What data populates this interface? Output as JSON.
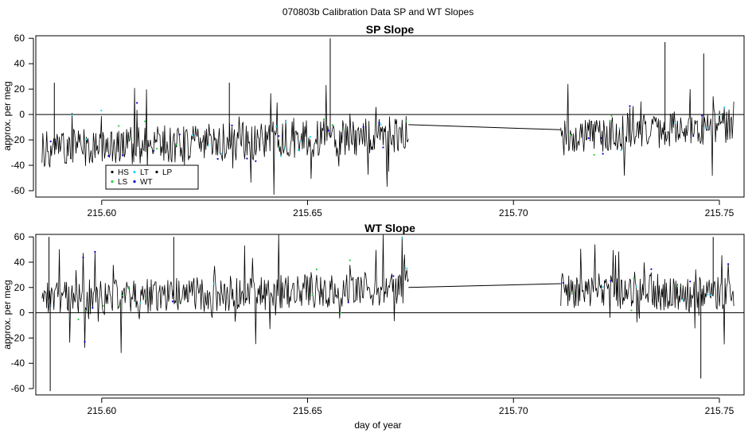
{
  "figure": {
    "title": "070803b   Calibration Data SP and WT Slopes"
  },
  "colors": {
    "series_line": "#000000",
    "HS": "#000000",
    "LS": "#2ecc40",
    "LT": "#1fd6ff",
    "WT": "#0000cc",
    "LP": "#000000",
    "reference": "#000000"
  },
  "chart_data": [
    {
      "type": "line",
      "title": "SP Slope",
      "xlabel": "",
      "ylabel": "approx. per meg",
      "xlim": [
        215.584,
        215.756
      ],
      "ylim": [
        -65,
        62
      ],
      "xticks": [
        "215.60",
        "215.65",
        "215.70",
        "215.75"
      ],
      "yticks": [
        "-60",
        "-40",
        "-20",
        "0",
        "20",
        "40",
        "60"
      ],
      "reference_line_y": 0,
      "segments": [
        {
          "x_start": 215.5855,
          "x_end": 215.6745,
          "baseline": -27,
          "baseline_end": -16,
          "spread": 15
        },
        {
          "x_start": 215.7115,
          "x_end": 215.7535,
          "baseline": -19,
          "baseline_end": -8,
          "spread": 14
        }
      ],
      "gap_line": {
        "x": [
          215.6745,
          215.7115
        ],
        "y": [
          -8,
          -12
        ]
      },
      "spikes": [
        {
          "x": 215.6555,
          "y": 60
        },
        {
          "x": 215.7368,
          "y": 57
        },
        {
          "x": 215.7462,
          "y": 48
        },
        {
          "x": 215.5885,
          "y": 25
        },
        {
          "x": 215.631,
          "y": 25
        }
      ],
      "series": [
        {
          "name": "HS"
        },
        {
          "name": "LS"
        },
        {
          "name": "LT"
        },
        {
          "name": "WT"
        },
        {
          "name": "LP"
        }
      ],
      "legend_position": "bottom-left",
      "grid": false
    },
    {
      "type": "line",
      "title": "WT Slope",
      "xlabel": "day of year",
      "ylabel": "approx. per meg",
      "xlim": [
        215.584,
        215.756
      ],
      "ylim": [
        -65,
        62
      ],
      "xticks": [
        "215.60",
        "215.65",
        "215.70",
        "215.75"
      ],
      "yticks": [
        "-60",
        "-40",
        "-20",
        "0",
        "20",
        "40",
        "60"
      ],
      "reference_line_y": 0,
      "segments": [
        {
          "x_start": 215.5855,
          "x_end": 215.6745,
          "baseline": 10,
          "baseline_end": 20,
          "spread": 14
        },
        {
          "x_start": 215.7115,
          "x_end": 215.7535,
          "baseline": 18,
          "baseline_end": 14,
          "spread": 14
        }
      ],
      "gap_line": {
        "x": [
          215.6745,
          215.7115
        ],
        "y": [
          20,
          23
        ]
      },
      "spikes": [
        {
          "x": 215.5875,
          "y": -62
        },
        {
          "x": 215.7455,
          "y": -52
        },
        {
          "x": 215.5872,
          "y": 60
        },
        {
          "x": 215.6175,
          "y": 60
        },
        {
          "x": 215.7485,
          "y": 60
        }
      ],
      "legend_position": "none",
      "grid": false
    }
  ]
}
